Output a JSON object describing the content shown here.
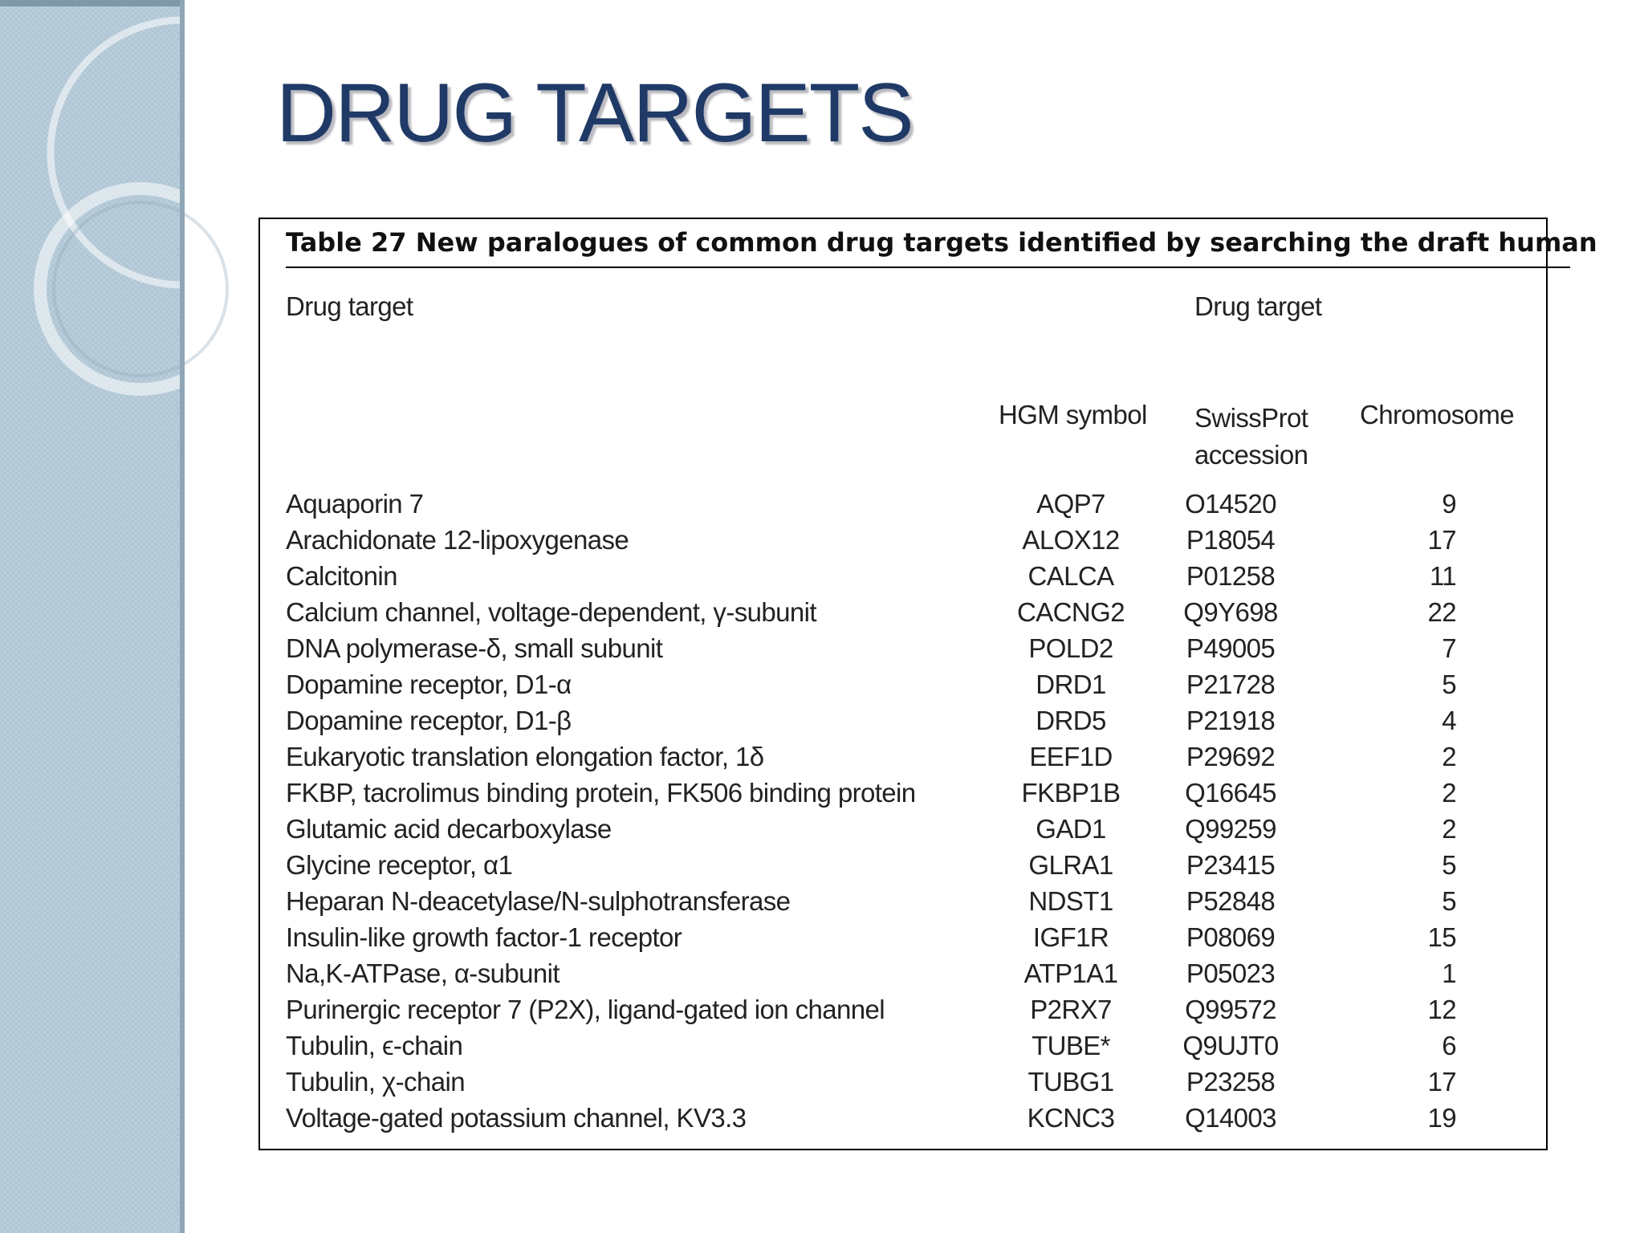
{
  "slide": {
    "title": "DRUG TARGETS"
  },
  "table": {
    "caption": "Table 27 New paralogues of common drug targets identified by searching the draft human",
    "group_headers": [
      "Drug target",
      "Drug target"
    ],
    "columns": {
      "hgm": "HGM symbol",
      "swiss_line1": "SwissProt",
      "swiss_line2": "accession",
      "chrom": "Chromosome"
    },
    "rows": [
      {
        "target": "Aquaporin 7",
        "hgm": "AQP7",
        "swiss": "O14520",
        "chrom": "9"
      },
      {
        "target": "Arachidonate 12-lipoxygenase",
        "hgm": "ALOX12",
        "swiss": "P18054",
        "chrom": "17"
      },
      {
        "target": "Calcitonin",
        "hgm": "CALCA",
        "swiss": "P01258",
        "chrom": "11"
      },
      {
        "target": "Calcium channel, voltage-dependent, γ-subunit",
        "hgm": "CACNG2",
        "swiss": "Q9Y698",
        "chrom": "22"
      },
      {
        "target": "DNA polymerase-δ, small subunit",
        "hgm": "POLD2",
        "swiss": "P49005",
        "chrom": "7"
      },
      {
        "target": "Dopamine receptor, D1-α",
        "hgm": "DRD1",
        "swiss": "P21728",
        "chrom": "5"
      },
      {
        "target": "Dopamine receptor, D1-β",
        "hgm": "DRD5",
        "swiss": "P21918",
        "chrom": "4"
      },
      {
        "target": "Eukaryotic translation elongation factor, 1δ",
        "hgm": "EEF1D",
        "swiss": "P29692",
        "chrom": "2"
      },
      {
        "target": "FKBP, tacrolimus binding protein, FK506 binding protein",
        "hgm": "FKBP1B",
        "swiss": "Q16645",
        "chrom": "2"
      },
      {
        "target": "Glutamic acid decarboxylase",
        "hgm": "GAD1",
        "swiss": "Q99259",
        "chrom": "2"
      },
      {
        "target": "Glycine receptor, α1",
        "hgm": "GLRA1",
        "swiss": "P23415",
        "chrom": "5"
      },
      {
        "target": "Heparan N-deacetylase/N-sulphotransferase",
        "hgm": "NDST1",
        "swiss": "P52848",
        "chrom": "5"
      },
      {
        "target": "Insulin-like growth factor-1 receptor",
        "hgm": "IGF1R",
        "swiss": "P08069",
        "chrom": "15"
      },
      {
        "target": "Na,K-ATPase, α-subunit",
        "hgm": "ATP1A1",
        "swiss": "P05023",
        "chrom": "1"
      },
      {
        "target": "Purinergic receptor 7 (P2X), ligand-gated ion channel",
        "hgm": "P2RX7",
        "swiss": "Q99572",
        "chrom": "12"
      },
      {
        "target": "Tubulin, ϵ-chain",
        "hgm": "TUBE*",
        "swiss": "Q9UJT0",
        "chrom": "6"
      },
      {
        "target": "Tubulin, χ-chain",
        "hgm": "TUBG1",
        "swiss": "P23258",
        "chrom": "17"
      },
      {
        "target": "Voltage-gated potassium channel, KV3.3",
        "hgm": "KCNC3",
        "swiss": "Q14003",
        "chrom": "19"
      }
    ]
  }
}
